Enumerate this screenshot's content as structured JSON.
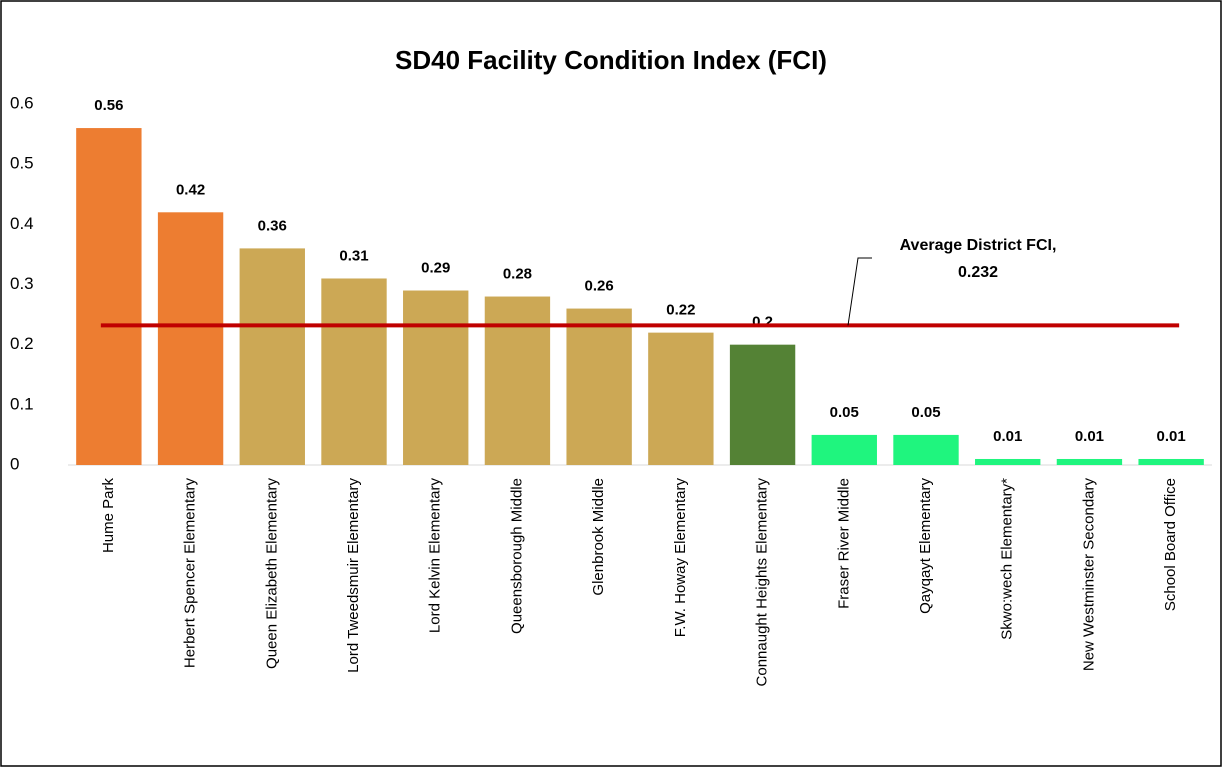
{
  "chart_data": {
    "type": "bar",
    "title": "SD40 Facility Condition Index (FCI)",
    "categories": [
      "Hume Park",
      "Herbert Spencer Elementary",
      "Queen Elizabeth Elementary",
      "Lord Tweedsmuir Elementary",
      "Lord Kelvin Elementary",
      "Queensborough Middle",
      "Glenbrook Middle",
      "F.W. Howay Elementary",
      "Connaught Heights Elementary",
      "Fraser River Middle",
      "Qayqayt Elementary",
      "Skwo:wech Elementary*",
      "New Westminster Secondary",
      "School Board Office"
    ],
    "values": [
      0.56,
      0.42,
      0.36,
      0.31,
      0.29,
      0.28,
      0.26,
      0.22,
      0.2,
      0.05,
      0.05,
      0.01,
      0.01,
      0.01
    ],
    "colors": [
      "#ED7D31",
      "#ED7D31",
      "#CCA855",
      "#CCA855",
      "#CCA855",
      "#CCA855",
      "#CCA855",
      "#CCA855",
      "#548235",
      "#1FF57E",
      "#1FF57E",
      "#1FF57E",
      "#1FF57E",
      "#1FF57E"
    ],
    "ylim": [
      0,
      0.6
    ],
    "yticks": [
      0,
      0.1,
      0.2,
      0.3,
      0.4,
      0.5,
      0.6
    ],
    "grid": false,
    "average": {
      "label": "Average District FCI,",
      "value": 0.232,
      "color": "#C00000"
    }
  }
}
